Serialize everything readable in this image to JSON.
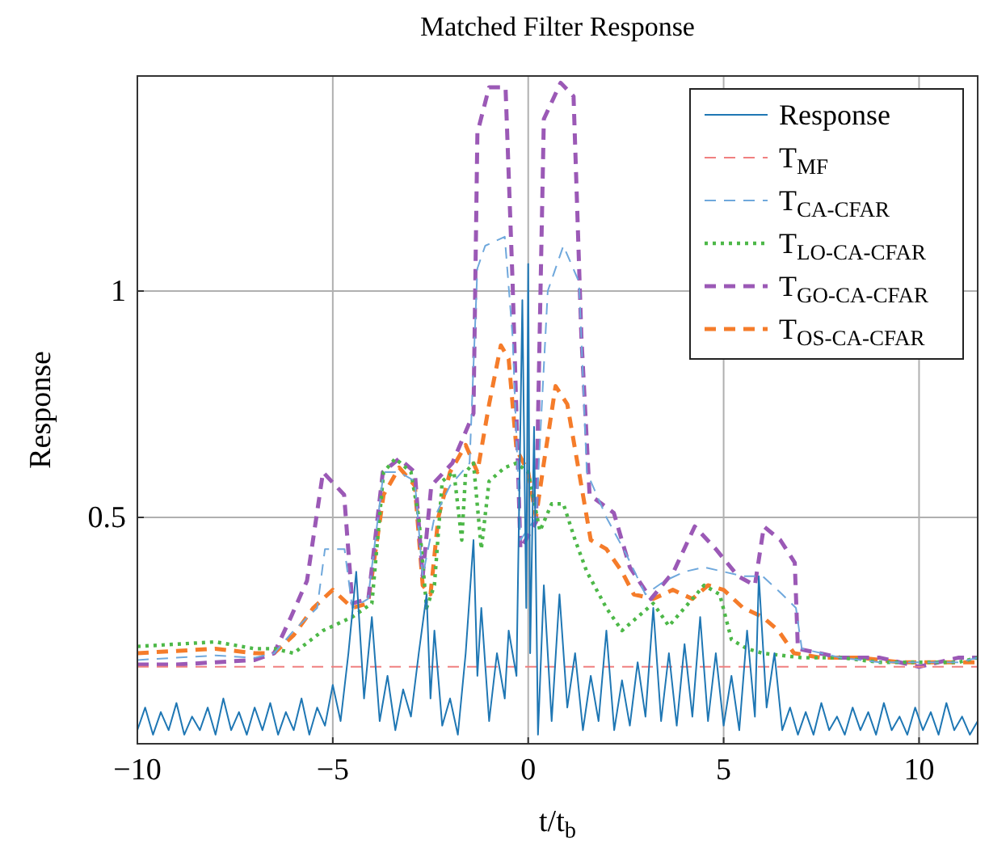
{
  "chart_data": {
    "type": "line",
    "title": "Matched Filter Response",
    "xlabel": "t/t$_{b}$",
    "ylabel": "Response",
    "xlim": [
      -10,
      11.5
    ],
    "ylim": [
      0,
      1.475
    ],
    "xticks": [
      {
        "value": -10,
        "label": "−10"
      },
      {
        "value": -5,
        "label": "−5"
      },
      0,
      5,
      10
    ],
    "yticks": [
      0.5,
      1
    ],
    "grid": true,
    "legend": "top right",
    "series": [
      {
        "name": "Response",
        "color": "#1f77b4",
        "line_style": "solid",
        "x": [
          -10,
          -9.8,
          -9.6,
          -9.4,
          -9.2,
          -9,
          -8.8,
          -8.6,
          -8.4,
          -8.2,
          -8,
          -7.8,
          -7.6,
          -7.4,
          -7.2,
          -7,
          -6.8,
          -6.6,
          -6.4,
          -6.2,
          -6,
          -5.8,
          -5.6,
          -5.4,
          -5.2,
          -5,
          -4.8,
          -4.6,
          -4.4,
          -4.2,
          -4,
          -3.8,
          -3.6,
          -3.4,
          -3.2,
          -3,
          -2.8,
          -2.6,
          -2.5,
          -2.4,
          -2.2,
          -2,
          -1.8,
          -1.6,
          -1.4,
          -1.3,
          -1.2,
          -1,
          -0.8,
          -0.6,
          -0.5,
          -0.3,
          -0.15,
          -0.05,
          0,
          0.05,
          0.15,
          0.25,
          0.4,
          0.6,
          0.8,
          1,
          1.2,
          1.4,
          1.6,
          1.8,
          2,
          2.2,
          2.4,
          2.6,
          2.8,
          3,
          3.2,
          3.4,
          3.6,
          3.8,
          4,
          4.2,
          4.4,
          4.6,
          4.8,
          5,
          5.2,
          5.4,
          5.6,
          5.8,
          5.9,
          6.1,
          6.3,
          6.5,
          6.7,
          6.9,
          7.1,
          7.3,
          7.5,
          7.7,
          7.9,
          8.1,
          8.3,
          8.5,
          8.7,
          8.9,
          9.1,
          9.3,
          9.5,
          9.7,
          9.9,
          10.1,
          10.3,
          10.5,
          10.7,
          10.9,
          11.1,
          11.3,
          11.5
        ],
        "values": [
          0.03,
          0.08,
          0.02,
          0.07,
          0.03,
          0.09,
          0.02,
          0.06,
          0.03,
          0.08,
          0.02,
          0.1,
          0.03,
          0.07,
          0.02,
          0.08,
          0.03,
          0.09,
          0.02,
          0.07,
          0.03,
          0.1,
          0.02,
          0.08,
          0.04,
          0.13,
          0.05,
          0.2,
          0.38,
          0.1,
          0.28,
          0.05,
          0.15,
          0.03,
          0.12,
          0.06,
          0.2,
          0.33,
          0.1,
          0.25,
          0.04,
          0.1,
          0.02,
          0.2,
          0.45,
          0.15,
          0.3,
          0.05,
          0.2,
          0.1,
          0.25,
          0.15,
          0.98,
          0.3,
          1.06,
          0.2,
          0.7,
          0.02,
          0.35,
          0.05,
          0.33,
          0.08,
          0.2,
          0.03,
          0.15,
          0.05,
          0.25,
          0.03,
          0.14,
          0.04,
          0.18,
          0.06,
          0.3,
          0.05,
          0.2,
          0.04,
          0.22,
          0.06,
          0.28,
          0.05,
          0.2,
          0.04,
          0.15,
          0.03,
          0.25,
          0.06,
          0.37,
          0.08,
          0.2,
          0.03,
          0.08,
          0.02,
          0.07,
          0.02,
          0.09,
          0.03,
          0.06,
          0.02,
          0.08,
          0.03,
          0.07,
          0.02,
          0.09,
          0.03,
          0.06,
          0.02,
          0.08,
          0.03,
          0.07,
          0.02,
          0.09,
          0.03,
          0.06,
          0.02,
          0.05
        ]
      },
      {
        "name": "T$_{MF}$",
        "color": "#f08080",
        "line_style": "dashed",
        "x": [
          -10,
          11.5
        ],
        "values": [
          0.17,
          0.17
        ]
      },
      {
        "name": "T$_{CA-CFAR}$",
        "color": "#6fa8dc",
        "line_style": "dashed",
        "x": [
          -10,
          -9,
          -8,
          -7,
          -6.5,
          -6,
          -5.4,
          -5.2,
          -4.7,
          -4.5,
          -4.1,
          -3.7,
          -3.3,
          -2.9,
          -2.7,
          -2.4,
          -2,
          -1.5,
          -1.3,
          -1.1,
          -0.6,
          -0.4,
          -0.2,
          0.2,
          0.5,
          0.9,
          1.3,
          1.5,
          2,
          2.5,
          3,
          3.5,
          4,
          4.5,
          5,
          5.5,
          6,
          6.5,
          6.85,
          7,
          8,
          9,
          10,
          11,
          11.5
        ],
        "values": [
          0.185,
          0.19,
          0.195,
          0.19,
          0.2,
          0.25,
          0.3,
          0.43,
          0.43,
          0.3,
          0.32,
          0.6,
          0.6,
          0.58,
          0.37,
          0.5,
          0.57,
          0.62,
          1.05,
          1.1,
          1.12,
          0.9,
          0.45,
          0.5,
          1,
          1.1,
          1.02,
          0.6,
          0.5,
          0.42,
          0.33,
          0.36,
          0.38,
          0.39,
          0.38,
          0.37,
          0.37,
          0.33,
          0.3,
          0.21,
          0.19,
          0.18,
          0.18,
          0.18,
          0.19
        ]
      },
      {
        "name": "T$_{LO-CA-CFAR}$",
        "color": "#4db848",
        "line_style": "dotted",
        "x": [
          -10,
          -9,
          -8,
          -7,
          -6.5,
          -6,
          -5.25,
          -4.5,
          -4,
          -3.7,
          -3.4,
          -3,
          -2.8,
          -2.6,
          -2.4,
          -2.2,
          -1.9,
          -1.7,
          -1.6,
          -1.4,
          -1.2,
          -1,
          -0.6,
          -0.3,
          0,
          0.3,
          0.6,
          0.9,
          1.2,
          1.5,
          2,
          2.4,
          2.8,
          3.2,
          3.6,
          4,
          4.5,
          4.9,
          5.2,
          5.6,
          6,
          7,
          8,
          9,
          10,
          11,
          11.5
        ],
        "values": [
          0.215,
          0.22,
          0.225,
          0.21,
          0.21,
          0.2,
          0.25,
          0.28,
          0.31,
          0.6,
          0.63,
          0.6,
          0.5,
          0.3,
          0.35,
          0.58,
          0.6,
          0.45,
          0.6,
          0.62,
          0.43,
          0.58,
          0.61,
          0.62,
          0.6,
          0.47,
          0.53,
          0.53,
          0.45,
          0.38,
          0.3,
          0.25,
          0.28,
          0.31,
          0.26,
          0.3,
          0.35,
          0.33,
          0.23,
          0.21,
          0.2,
          0.19,
          0.19,
          0.18,
          0.18,
          0.18,
          0.19
        ]
      },
      {
        "name": "T$_{GO-CA-CFAR}$",
        "color": "#9b59b6",
        "line_style": "dashed",
        "x": [
          -10,
          -9,
          -8,
          -7,
          -6.5,
          -6.07,
          -5.66,
          -5.25,
          -4.71,
          -4.5,
          -4.09,
          -3.72,
          -3.3,
          -2.9,
          -2.7,
          -2.48,
          -1.94,
          -1.4,
          -1.3,
          -1,
          -0.58,
          -0.4,
          -0.2,
          0.2,
          0.4,
          0.83,
          1.16,
          1.36,
          1.57,
          2.19,
          2.6,
          3.14,
          3.72,
          4.26,
          4.8,
          5.37,
          5.8,
          6.03,
          6.45,
          6.82,
          6.9,
          8,
          9,
          10,
          11,
          11.5
        ],
        "values": [
          0.175,
          0.175,
          0.18,
          0.185,
          0.2,
          0.28,
          0.36,
          0.6,
          0.55,
          0.31,
          0.32,
          0.6,
          0.63,
          0.6,
          0.37,
          0.57,
          0.62,
          0.73,
          1.35,
          1.45,
          1.45,
          1.02,
          0.43,
          0.49,
          1.38,
          1.46,
          1.43,
          0.9,
          0.55,
          0.51,
          0.39,
          0.32,
          0.38,
          0.48,
          0.43,
          0.37,
          0.35,
          0.48,
          0.45,
          0.4,
          0.21,
          0.19,
          0.19,
          0.17,
          0.19,
          0.19
        ]
      },
      {
        "name": "T$_{OS-CA-CFAR}$",
        "color": "#f57c2a",
        "line_style": "dashed",
        "x": [
          -10,
          -9,
          -8,
          -7,
          -6.5,
          -6,
          -5.5,
          -5,
          -4.5,
          -4.1,
          -3.7,
          -3.3,
          -2.9,
          -2.7,
          -2.5,
          -2.3,
          -2,
          -1.6,
          -1.3,
          -1,
          -0.7,
          -0.5,
          -0.3,
          0,
          0.2,
          0.4,
          0.7,
          1,
          1.3,
          1.6,
          2,
          2.4,
          2.7,
          3.2,
          3.7,
          4.2,
          4.6,
          5,
          5.5,
          6,
          6.4,
          6.8,
          7.5,
          8.5,
          9.5,
          10.5,
          11.5
        ],
        "values": [
          0.2,
          0.205,
          0.21,
          0.2,
          0.2,
          0.24,
          0.3,
          0.34,
          0.3,
          0.31,
          0.55,
          0.61,
          0.57,
          0.35,
          0.33,
          0.5,
          0.6,
          0.66,
          0.6,
          0.75,
          0.88,
          0.85,
          0.65,
          0.6,
          0.5,
          0.62,
          0.79,
          0.75,
          0.6,
          0.45,
          0.43,
          0.38,
          0.33,
          0.32,
          0.34,
          0.32,
          0.35,
          0.34,
          0.3,
          0.28,
          0.25,
          0.2,
          0.19,
          0.19,
          0.18,
          0.18,
          0.18
        ]
      }
    ]
  }
}
